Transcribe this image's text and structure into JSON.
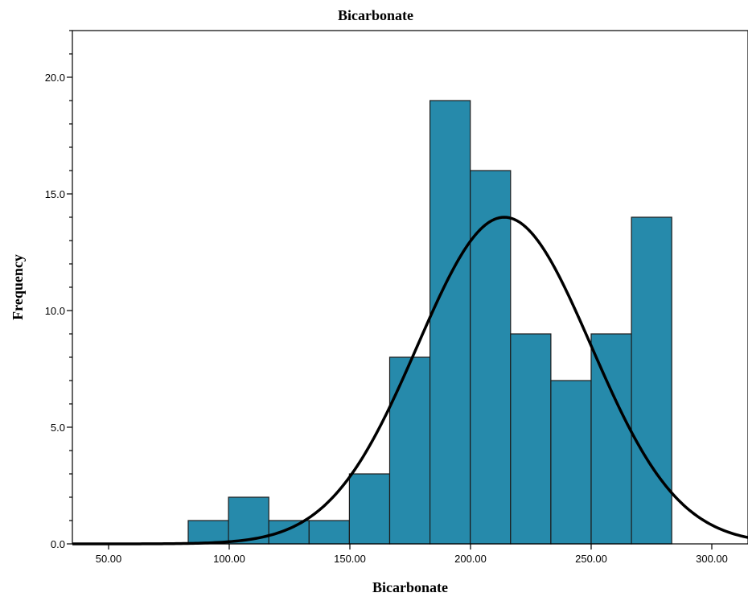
{
  "chart_data": {
    "type": "bar",
    "title": "Bicarbonate",
    "xlabel": "Bicarbonate",
    "ylabel": "Frequency",
    "xlim": [
      35,
      315
    ],
    "ylim": [
      0,
      22
    ],
    "x_ticks": [
      {
        "value": 50,
        "label": "50.00"
      },
      {
        "value": 100,
        "label": "100.00"
      },
      {
        "value": 150,
        "label": "150.00"
      },
      {
        "value": 200,
        "label": "200.00"
      },
      {
        "value": 250,
        "label": "250.00"
      },
      {
        "value": 300,
        "label": "300.00"
      }
    ],
    "y_ticks": [
      {
        "value": 0,
        "label": "0.0"
      },
      {
        "value": 5,
        "label": "5.0"
      },
      {
        "value": 10,
        "label": "10.0"
      },
      {
        "value": 15,
        "label": "15.0"
      },
      {
        "value": 20,
        "label": "20.0"
      }
    ],
    "bins": [
      {
        "start": 83.0,
        "end": 99.7,
        "count": 1
      },
      {
        "start": 99.7,
        "end": 116.4,
        "count": 2
      },
      {
        "start": 116.4,
        "end": 133.1,
        "count": 1
      },
      {
        "start": 133.1,
        "end": 149.8,
        "count": 1
      },
      {
        "start": 149.8,
        "end": 166.5,
        "count": 3
      },
      {
        "start": 166.5,
        "end": 183.2,
        "count": 8
      },
      {
        "start": 183.2,
        "end": 199.9,
        "count": 19
      },
      {
        "start": 199.9,
        "end": 216.6,
        "count": 16
      },
      {
        "start": 216.6,
        "end": 233.3,
        "count": 9
      },
      {
        "start": 233.3,
        "end": 250.0,
        "count": 7
      },
      {
        "start": 250.0,
        "end": 266.7,
        "count": 9
      },
      {
        "start": 266.7,
        "end": 283.4,
        "count": 14
      }
    ],
    "normal_curve": {
      "mean": 214,
      "sd": 36,
      "peak": 14.0
    },
    "bar_color": "#268aab",
    "bar_edge_color": "#1b1b1b",
    "curve_color": "#000000",
    "grid": false,
    "minor_y_ticks": true
  }
}
